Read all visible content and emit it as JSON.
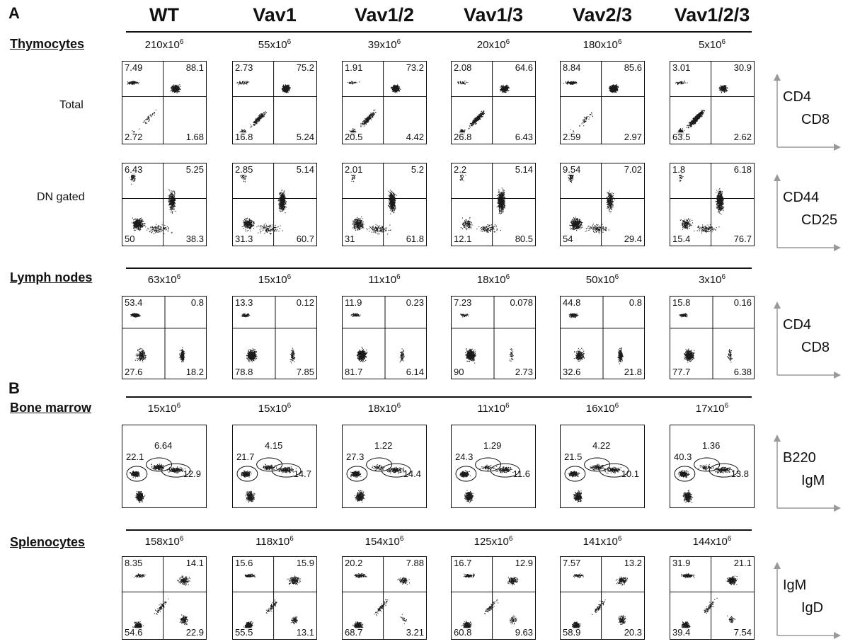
{
  "panels": {
    "a": "A",
    "b": "B"
  },
  "columns": [
    "WT",
    "Vav1",
    "Vav1/2",
    "Vav1/3",
    "Vav2/3",
    "Vav1/2/3"
  ],
  "sections": [
    {
      "label": "Thymocytes",
      "counts": [
        {
          "mantissa": "210",
          "exp": "6"
        },
        {
          "mantissa": "55",
          "exp": "6"
        },
        {
          "mantissa": "39",
          "exp": "6"
        },
        {
          "mantissa": "20",
          "exp": "6"
        },
        {
          "mantissa": "180",
          "exp": "6"
        },
        {
          "mantissa": "5",
          "exp": "6"
        }
      ],
      "rows": [
        {
          "label": "Total",
          "style": "quad",
          "axis": {
            "y": "CD4",
            "x": "CD8"
          },
          "plots": [
            {
              "tl": "7.49",
              "tr": "88.1",
              "bl": "2.72",
              "br": "1.68"
            },
            {
              "tl": "2.73",
              "tr": "75.2",
              "bl": "16.8",
              "br": "5.24"
            },
            {
              "tl": "1.91",
              "tr": "73.2",
              "bl": "20.5",
              "br": "4.42"
            },
            {
              "tl": "2.08",
              "tr": "64.6",
              "bl": "26.8",
              "br": "6.43"
            },
            {
              "tl": "8.84",
              "tr": "85.6",
              "bl": "2.59",
              "br": "2.97"
            },
            {
              "tl": "3.01",
              "tr": "30.9",
              "bl": "63.5",
              "br": "2.62"
            }
          ]
        },
        {
          "label": "DN gated",
          "style": "quad",
          "axis": {
            "y": "CD44",
            "x": "CD25"
          },
          "plots": [
            {
              "tl": "6.43",
              "tr": "5.25",
              "bl": "50",
              "br": "38.3"
            },
            {
              "tl": "2.85",
              "tr": "5.14",
              "bl": "31.3",
              "br": "60.7"
            },
            {
              "tl": "2.01",
              "tr": "5.2",
              "bl": "31",
              "br": "61.8"
            },
            {
              "tl": "2.2",
              "tr": "5.14",
              "bl": "12.1",
              "br": "80.5"
            },
            {
              "tl": "9.54",
              "tr": "7.02",
              "bl": "54",
              "br": "29.4"
            },
            {
              "tl": "1.8",
              "tr": "6.18",
              "bl": "15.4",
              "br": "76.7"
            }
          ]
        }
      ]
    },
    {
      "label": "Lymph nodes",
      "counts": [
        {
          "mantissa": "63",
          "exp": "6"
        },
        {
          "mantissa": "15",
          "exp": "6"
        },
        {
          "mantissa": "11",
          "exp": "6"
        },
        {
          "mantissa": "18",
          "exp": "6"
        },
        {
          "mantissa": "50",
          "exp": "6"
        },
        {
          "mantissa": "3",
          "exp": "6"
        }
      ],
      "rows": [
        {
          "label": "",
          "style": "quad",
          "axis": {
            "y": "CD4",
            "x": "CD8"
          },
          "plots": [
            {
              "tl": "53.4",
              "tr": "0.8",
              "bl": "27.6",
              "br": "18.2"
            },
            {
              "tl": "13.3",
              "tr": "0.12",
              "bl": "78.8",
              "br": "7.85"
            },
            {
              "tl": "11.9",
              "tr": "0.23",
              "bl": "81.7",
              "br": "6.14"
            },
            {
              "tl": "7.23",
              "tr": "0.078",
              "bl": "90",
              "br": "2.73"
            },
            {
              "tl": "44.8",
              "tr": "0.8",
              "bl": "32.6",
              "br": "21.8"
            },
            {
              "tl": "15.8",
              "tr": "0.16",
              "bl": "77.7",
              "br": "6.38"
            }
          ]
        }
      ]
    },
    {
      "label": "Bone marrow",
      "counts": [
        {
          "mantissa": "15",
          "exp": "6"
        },
        {
          "mantissa": "15",
          "exp": "6"
        },
        {
          "mantissa": "18",
          "exp": "6"
        },
        {
          "mantissa": "11",
          "exp": "6"
        },
        {
          "mantissa": "16",
          "exp": "6"
        },
        {
          "mantissa": "17",
          "exp": "6"
        }
      ],
      "rows": [
        {
          "label": "",
          "style": "gates",
          "axis": {
            "y": "B220",
            "x": "IgM"
          },
          "plots": [
            {
              "left": "22.1",
              "top": "6.64",
              "right": "12.9"
            },
            {
              "left": "21.7",
              "top": "4.15",
              "right": "14.7"
            },
            {
              "left": "27.3",
              "top": "1.22",
              "right": "14.4"
            },
            {
              "left": "24.3",
              "top": "1.29",
              "right": "11.6"
            },
            {
              "left": "21.5",
              "top": "4.22",
              "right": "10.1"
            },
            {
              "left": "40.3",
              "top": "1.36",
              "right": "13.8"
            }
          ]
        }
      ]
    },
    {
      "label": "Splenocytes",
      "counts": [
        {
          "mantissa": "158",
          "exp": "6"
        },
        {
          "mantissa": "118",
          "exp": "6"
        },
        {
          "mantissa": "154",
          "exp": "6"
        },
        {
          "mantissa": "125",
          "exp": "6"
        },
        {
          "mantissa": "141",
          "exp": "6"
        },
        {
          "mantissa": "144",
          "exp": "6"
        }
      ],
      "rows": [
        {
          "label": "",
          "style": "quad",
          "axis": {
            "y": "IgM",
            "x": "IgD"
          },
          "plots": [
            {
              "tl": "8.35",
              "tr": "14.1",
              "bl": "54.6",
              "br": "22.9"
            },
            {
              "tl": "15.6",
              "tr": "15.9",
              "bl": "55.5",
              "br": "13.1"
            },
            {
              "tl": "20.2",
              "tr": "7.88",
              "bl": "68.7",
              "br": "3.21"
            },
            {
              "tl": "16.7",
              "tr": "12.9",
              "bl": "60.8",
              "br": "9.63"
            },
            {
              "tl": "7.57",
              "tr": "13.2",
              "bl": "58.9",
              "br": "20.3"
            },
            {
              "tl": "31.9",
              "tr": "21.1",
              "bl": "39.4",
              "br": "7.54"
            }
          ]
        }
      ]
    }
  ]
}
